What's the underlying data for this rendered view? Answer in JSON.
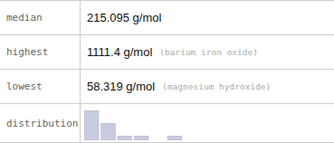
{
  "chart_data": {
    "type": "bar",
    "table": [
      {
        "label": "median",
        "value": "215.095 g/mol"
      },
      {
        "label": "highest",
        "value": "1111.4 g/mol",
        "note": "(barium iron oxide)"
      },
      {
        "label": "lowest",
        "value": "58.319 g/mol",
        "note": "(magnesium hydroxide)"
      },
      {
        "label": "distribution"
      }
    ],
    "categories": [
      null,
      null,
      null,
      null,
      null,
      null
    ],
    "values": [
      7,
      4,
      1,
      1,
      0,
      1
    ],
    "color": "#c8cce0",
    "ylim": [
      0,
      7.7
    ],
    "tick_labels": false,
    "grid": false
  }
}
